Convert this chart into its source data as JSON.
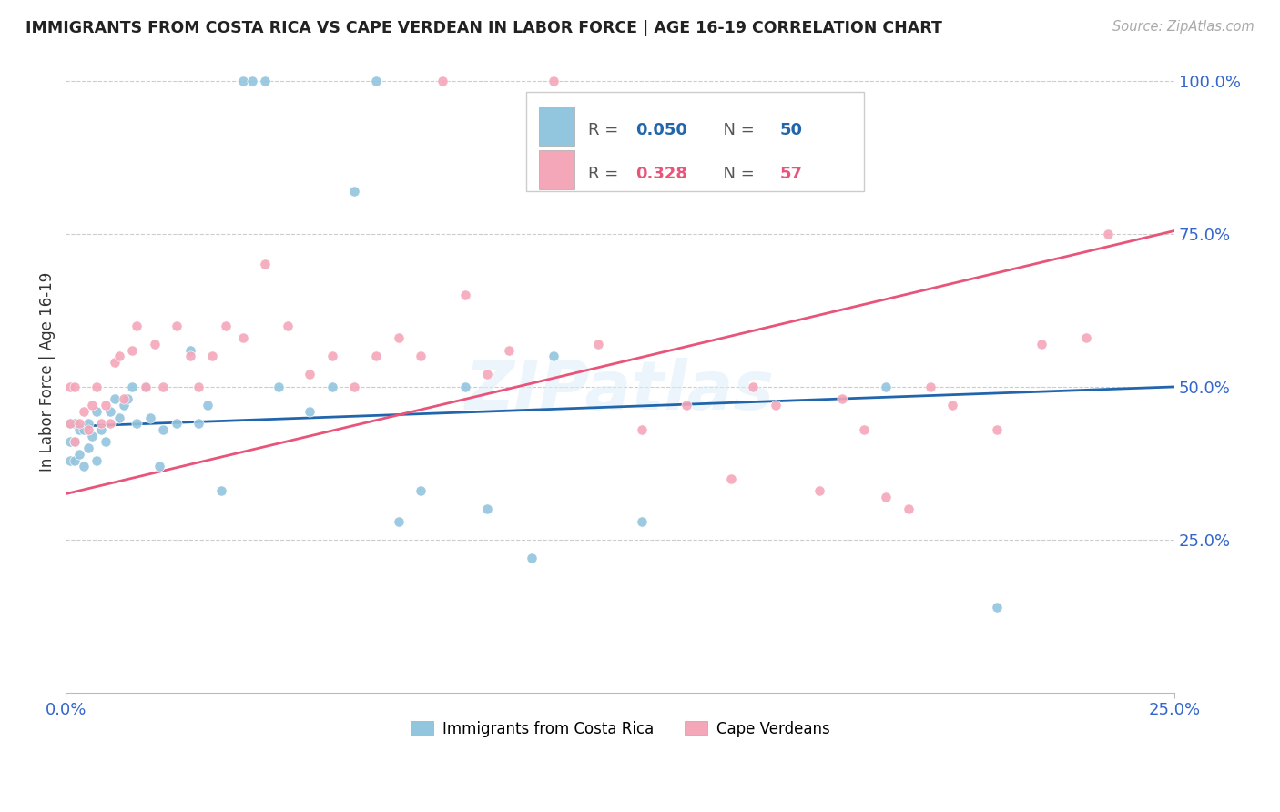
{
  "title": "IMMIGRANTS FROM COSTA RICA VS CAPE VERDEAN IN LABOR FORCE | AGE 16-19 CORRELATION CHART",
  "source": "Source: ZipAtlas.com",
  "ylabel": "In Labor Force | Age 16-19",
  "xlim": [
    0.0,
    0.25
  ],
  "ylim": [
    0.0,
    1.05
  ],
  "blue_R": "0.050",
  "blue_N": "50",
  "pink_R": "0.328",
  "pink_N": "57",
  "blue_color": "#92c5de",
  "pink_color": "#f4a7b9",
  "blue_line_color": "#2166ac",
  "pink_line_color": "#e8547a",
  "legend_label_blue": "Immigrants from Costa Rica",
  "legend_label_pink": "Cape Verdeans",
  "watermark": "ZIPatlas",
  "blue_line_x0": 0.0,
  "blue_line_y0": 0.435,
  "blue_line_x1": 0.25,
  "blue_line_y1": 0.5,
  "pink_line_x0": 0.0,
  "pink_line_y0": 0.325,
  "pink_line_x1": 0.25,
  "pink_line_y1": 0.755,
  "blue_x": [
    0.001,
    0.001,
    0.001,
    0.002,
    0.002,
    0.002,
    0.003,
    0.003,
    0.004,
    0.004,
    0.005,
    0.005,
    0.006,
    0.007,
    0.007,
    0.008,
    0.009,
    0.01,
    0.011,
    0.012,
    0.013,
    0.014,
    0.015,
    0.016,
    0.018,
    0.019,
    0.021,
    0.022,
    0.025,
    0.028,
    0.03,
    0.032,
    0.035,
    0.04,
    0.042,
    0.045,
    0.048,
    0.055,
    0.06,
    0.065,
    0.07,
    0.075,
    0.08,
    0.09,
    0.095,
    0.105,
    0.11,
    0.13,
    0.185,
    0.21
  ],
  "blue_y": [
    0.38,
    0.41,
    0.44,
    0.38,
    0.41,
    0.44,
    0.39,
    0.43,
    0.37,
    0.43,
    0.4,
    0.44,
    0.42,
    0.38,
    0.46,
    0.43,
    0.41,
    0.46,
    0.48,
    0.45,
    0.47,
    0.48,
    0.5,
    0.44,
    0.5,
    0.45,
    0.37,
    0.43,
    0.44,
    0.56,
    0.44,
    0.47,
    0.33,
    1.0,
    1.0,
    1.0,
    0.5,
    0.46,
    0.5,
    0.82,
    1.0,
    0.28,
    0.33,
    0.5,
    0.3,
    0.22,
    0.55,
    0.28,
    0.5,
    0.14
  ],
  "pink_x": [
    0.001,
    0.001,
    0.002,
    0.002,
    0.003,
    0.004,
    0.005,
    0.006,
    0.007,
    0.008,
    0.009,
    0.01,
    0.011,
    0.012,
    0.013,
    0.015,
    0.016,
    0.018,
    0.02,
    0.022,
    0.025,
    0.028,
    0.03,
    0.033,
    0.036,
    0.04,
    0.045,
    0.05,
    0.055,
    0.06,
    0.065,
    0.07,
    0.075,
    0.08,
    0.085,
    0.09,
    0.095,
    0.1,
    0.11,
    0.115,
    0.12,
    0.13,
    0.14,
    0.15,
    0.155,
    0.16,
    0.17,
    0.175,
    0.18,
    0.185,
    0.19,
    0.195,
    0.2,
    0.21,
    0.22,
    0.23,
    0.235
  ],
  "pink_y": [
    0.44,
    0.5,
    0.41,
    0.5,
    0.44,
    0.46,
    0.43,
    0.47,
    0.5,
    0.44,
    0.47,
    0.44,
    0.54,
    0.55,
    0.48,
    0.56,
    0.6,
    0.5,
    0.57,
    0.5,
    0.6,
    0.55,
    0.5,
    0.55,
    0.6,
    0.58,
    0.7,
    0.6,
    0.52,
    0.55,
    0.5,
    0.55,
    0.58,
    0.55,
    1.0,
    0.65,
    0.52,
    0.56,
    1.0,
    0.88,
    0.57,
    0.43,
    0.47,
    0.35,
    0.5,
    0.47,
    0.33,
    0.48,
    0.43,
    0.32,
    0.3,
    0.5,
    0.47,
    0.43,
    0.57,
    0.58,
    0.75
  ]
}
